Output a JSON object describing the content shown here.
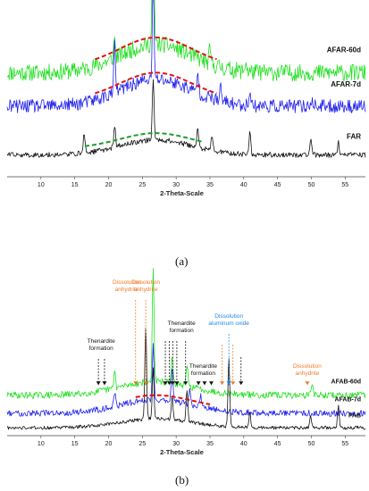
{
  "colors": {
    "green": "#22e022",
    "blue": "#2222ee",
    "black": "#111111",
    "red_dashed": "#e01010",
    "green_dashed": "#1a9e2a",
    "orange": "#f07a2a",
    "blue_annotation": "#1f86e6"
  },
  "chart_data": [
    {
      "type": "line",
      "panel_label": "(a)",
      "xlabel": "2-Theta-Scale",
      "ylabel": "",
      "xlim": [
        5,
        58
      ],
      "xticks": [
        "10",
        "15",
        "20",
        "25",
        "30",
        "35",
        "40",
        "45",
        "50",
        "55"
      ],
      "grid": false,
      "legend": "series labels at right end of each trace",
      "series": [
        {
          "name": "AFAR-60d",
          "color": "#22e022",
          "baseline": 0.62,
          "hump_height": 0.17,
          "noise": 0.05,
          "peaks": [
            [
              26.6,
              1.0
            ],
            [
              20.9,
              0.12
            ],
            [
              35.0,
              0.08
            ],
            [
              40.3,
              0.06
            ]
          ]
        },
        {
          "name": "AFAR-7d",
          "color": "#2222ee",
          "baseline": 0.42,
          "hump_height": 0.16,
          "noise": 0.04,
          "peaks": [
            [
              26.6,
              0.55
            ],
            [
              20.9,
              0.28
            ],
            [
              33.2,
              0.12
            ],
            [
              36.6,
              0.08
            ],
            [
              40.9,
              0.1
            ],
            [
              50.1,
              0.05
            ]
          ]
        },
        {
          "name": "FAR",
          "color": "#111111",
          "baseline": 0.13,
          "hump_height": 0.09,
          "noise": 0.015,
          "peaks": [
            [
              26.6,
              0.36
            ],
            [
              16.4,
              0.12
            ],
            [
              20.9,
              0.13
            ],
            [
              33.2,
              0.11
            ],
            [
              35.3,
              0.09
            ],
            [
              40.9,
              0.14
            ],
            [
              49.9,
              0.1
            ],
            [
              54.0,
              0.08
            ]
          ]
        }
      ],
      "amorphous_humps": [
        {
          "over": "AFAR-60d",
          "color": "#e01010",
          "x_range": [
            18,
            36
          ]
        },
        {
          "over": "AFAR-7d",
          "color": "#e01010",
          "x_range": [
            18,
            36
          ]
        },
        {
          "over": "FAR",
          "color": "#1a9e2a",
          "x_range": [
            16.5,
            34
          ]
        }
      ]
    },
    {
      "type": "line",
      "panel_label": "(b)",
      "xlabel": "2-Theta-Scale",
      "ylabel": "",
      "xlim": [
        5,
        58
      ],
      "xticks": [
        "10",
        "15",
        "20",
        "25",
        "30",
        "35",
        "40",
        "45",
        "50",
        "55"
      ],
      "grid": false,
      "legend": "series labels at right end of each trace",
      "series": [
        {
          "name": "AFAB-60d",
          "color": "#22e022",
          "baseline": 0.36,
          "hump_height": 0.12,
          "noise": 0.03,
          "peaks": [
            [
              26.6,
              1.0
            ],
            [
              20.9,
              0.15
            ],
            [
              29.4,
              0.22
            ],
            [
              31.6,
              0.18
            ],
            [
              50.1,
              0.12
            ]
          ]
        },
        {
          "name": "AFAB-7d",
          "color": "#2222ee",
          "baseline": 0.2,
          "hump_height": 0.12,
          "noise": 0.028,
          "peaks": [
            [
              26.6,
              0.48
            ],
            [
              20.9,
              0.12
            ],
            [
              29.4,
              0.3
            ],
            [
              32.0,
              0.12
            ],
            [
              33.6,
              0.1
            ]
          ]
        },
        {
          "name": "FAB",
          "color": "#111111",
          "baseline": 0.07,
          "hump_height": 0.08,
          "noise": 0.015,
          "peaks": [
            [
              25.5,
              0.82
            ],
            [
              26.6,
              0.45
            ],
            [
              29.4,
              0.2
            ],
            [
              31.6,
              0.28
            ],
            [
              37.8,
              0.62
            ],
            [
              40.9,
              0.14
            ],
            [
              49.9,
              0.1
            ],
            [
              54.0,
              0.2
            ]
          ]
        }
      ],
      "amorphous_humps": [
        {
          "over": "AFAB-7d",
          "color": "#e01010",
          "x_range": [
            24,
            35
          ]
        }
      ],
      "annotations": [
        {
          "text": [
            "Dissolution",
            "anhydrite"
          ],
          "color": "#f07a2a",
          "label_x": 25.5,
          "arrow_xs": [
            25.5
          ]
        },
        {
          "text": [
            "Thenardite",
            "formation"
          ],
          "color": "#111111",
          "label_x": 30.8,
          "arrow_xs": [
            28.4,
            29.0,
            29.5,
            30.1,
            31.4
          ]
        },
        {
          "text": [
            "Dissolution",
            "aluminum oxide"
          ],
          "color": "#1f86e6",
          "label_x": 37.8,
          "arrow_xs": [
            37.8
          ]
        },
        {
          "text": [
            "Thenardite",
            "formation"
          ],
          "color": "#111111",
          "label_x": 18.9,
          "arrow_xs": [
            18.5,
            19.4
          ]
        },
        {
          "text": [
            "Dissolution",
            "anhydrite"
          ],
          "color": "#f07a2a",
          "label_x": 22.7,
          "arrow_xs": [
            24.0
          ]
        },
        {
          "text": [
            "Thenardite",
            "formation"
          ],
          "color": "#111111",
          "label_x": 34.0,
          "arrow_xs": [
            33.3,
            34.2,
            35.2
          ]
        },
        {
          "text": [],
          "color": "#f07a2a",
          "label_x": 36.8,
          "arrow_xs": [
            36.8,
            38.4
          ]
        },
        {
          "text": [],
          "color": "#111111",
          "label_x": 39.6,
          "arrow_xs": [
            39.6
          ]
        },
        {
          "text": [
            "Dissolution",
            "anhydrite"
          ],
          "color": "#f07a2a",
          "label_x": 49.4,
          "arrow_xs": [
            49.4
          ]
        }
      ]
    }
  ]
}
